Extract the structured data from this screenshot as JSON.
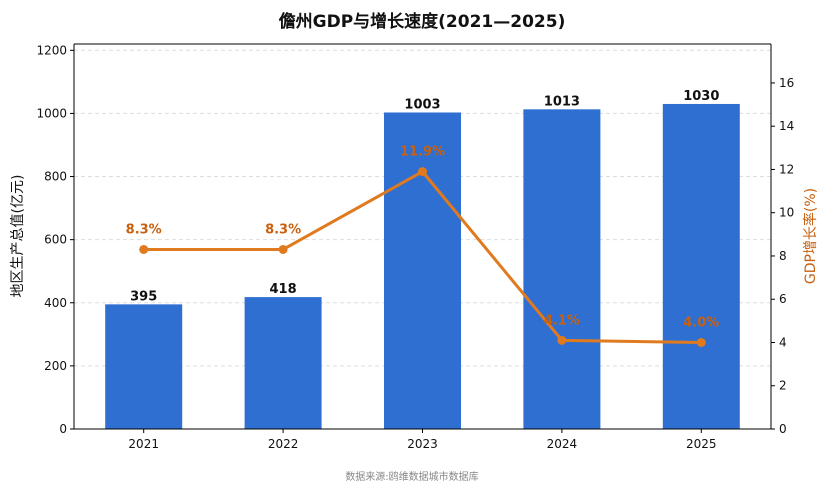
{
  "chart_data": {
    "type": "bar",
    "title": "儋州GDP与增长速度(2021—2025)",
    "categories": [
      "2021",
      "2022",
      "2023",
      "2024",
      "2025"
    ],
    "series": [
      {
        "values": [
          395,
          418,
          1003,
          1013,
          1030
        ],
        "axis": "left",
        "type": "bar",
        "color": "#2F6FD1"
      },
      {
        "values": [
          8.3,
          8.3,
          11.9,
          4.1,
          4.0
        ],
        "axis": "right",
        "type": "line",
        "color": "#E07A1F"
      }
    ],
    "bar_labels": [
      "395",
      "418",
      "1003",
      "1013",
      "1030"
    ],
    "rate_labels": [
      "8.3%",
      "8.3%",
      "11.9%",
      "4.1%",
      "4.0%"
    ],
    "ylabel": "地区生产总值(亿元)",
    "y2label": "GDP增长率(%)",
    "ylim": [
      0,
      1220
    ],
    "y2lim": [
      0,
      17.8
    ],
    "yticks": [
      0,
      200,
      400,
      600,
      800,
      1000,
      1200
    ],
    "y2ticks": [
      0,
      2,
      4,
      6,
      8,
      10,
      12,
      14,
      16
    ],
    "grid": true,
    "source": "数据来源:鸥维数据城市数据库",
    "colors": {
      "bar": "#2F6FD1",
      "line": "#E07A1F",
      "y2label": "#C8600F",
      "grid": "#dddddd"
    }
  }
}
